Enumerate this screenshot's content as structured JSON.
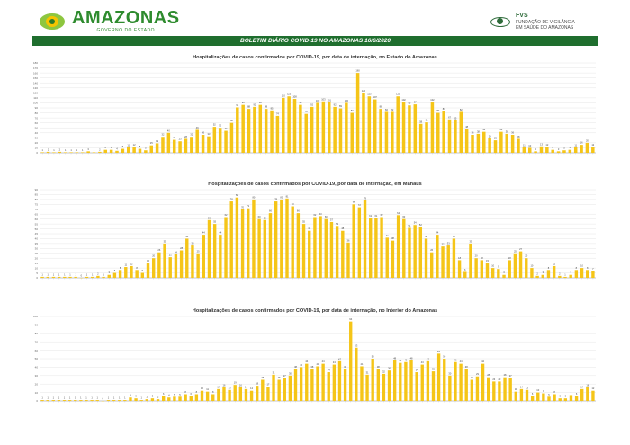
{
  "header": {
    "brand_name": "AMAZONAS",
    "brand_subtitle": "GOVERNO DO ESTADO",
    "fvs_name": "FVS",
    "fvs_line1": "FUNDAÇÃO DE VIGILÂNCIA",
    "fvs_line2": "EM SAÚDE DO AMAZONAS"
  },
  "bulletin_title": "BOLETIM DIÁRIO COVID-19 NO AMAZONAS 16/6/2020",
  "chart_data": [
    {
      "type": "bar",
      "title": "Hospitalizações de casos confirmados por COVID-19, por data de internação, no Estado do Amazonas",
      "ylim": [
        0,
        180
      ],
      "yticks": [
        0,
        10,
        20,
        30,
        40,
        50,
        60,
        70,
        80,
        90,
        100,
        110,
        120,
        130,
        140,
        150,
        160,
        170,
        180
      ],
      "color": "#f5c518",
      "values": [
        1,
        2,
        1,
        2,
        1,
        1,
        1,
        1,
        3,
        1,
        2,
        6,
        6,
        4,
        8,
        11,
        12,
        8,
        5,
        15,
        19,
        32,
        40,
        26,
        23,
        28,
        32,
        46,
        36,
        33,
        52,
        50,
        44,
        60,
        91,
        96,
        88,
        92,
        96,
        88,
        85,
        74,
        110,
        113,
        108,
        96,
        78,
        92,
        100,
        103,
        101,
        92,
        89,
        100,
        80,
        160,
        120,
        113,
        107,
        88,
        82,
        82,
        113,
        102,
        95,
        97,
        58,
        61,
        102,
        80,
        84,
        67,
        65,
        82,
        48,
        36,
        38,
        42,
        29,
        25,
        42,
        38,
        36,
        28,
        11,
        10,
        3,
        13,
        12,
        6,
        3,
        5,
        6,
        11,
        16,
        20,
        12
      ]
    },
    {
      "type": "bar",
      "title": "Hospitalizações de casos confirmados por COVID-19, por data de internação, em Manaus",
      "ylim": [
        0,
        90
      ],
      "yticks": [
        0,
        5,
        10,
        15,
        20,
        25,
        30,
        35,
        40,
        45,
        50,
        55,
        60,
        65,
        70,
        75,
        80,
        85,
        90
      ],
      "color": "#f5c518",
      "values": [
        1,
        1,
        1,
        1,
        1,
        1,
        1,
        0,
        1,
        1,
        2,
        1,
        3,
        5,
        8,
        11,
        12,
        8,
        5,
        15,
        20,
        26,
        35,
        21,
        24,
        28,
        40,
        33,
        25,
        44,
        59,
        55,
        44,
        62,
        78,
        82,
        70,
        71,
        80,
        60,
        59,
        66,
        78,
        80,
        81,
        73,
        66,
        55,
        48,
        62,
        63,
        60,
        57,
        53,
        48,
        36,
        75,
        72,
        79,
        61,
        61,
        62,
        41,
        38,
        64,
        60,
        51,
        54,
        52,
        40,
        26,
        44,
        32,
        33,
        40,
        18,
        6,
        35,
        20,
        18,
        15,
        10,
        9,
        3,
        18,
        25,
        27,
        20,
        10,
        2,
        3,
        8,
        12,
        2,
        1,
        3,
        8,
        10,
        8,
        7
      ]
    },
    {
      "type": "bar",
      "title": "Hospitalizações  de casos confirmados por COVID-19, por data de internação, no Interior do Amazonas",
      "ylim": [
        0,
        100
      ],
      "yticks": [
        0,
        10,
        20,
        30,
        40,
        50,
        60,
        70,
        80,
        90,
        100
      ],
      "color": "#f5c518",
      "values": [
        1,
        1,
        1,
        1,
        1,
        1,
        1,
        1,
        1,
        1,
        1,
        0,
        1,
        1,
        1,
        1,
        4,
        3,
        1,
        2,
        3,
        2,
        6,
        4,
        5,
        5,
        8,
        6,
        8,
        12,
        11,
        8,
        14,
        16,
        13,
        19,
        16,
        14,
        12,
        18,
        25,
        17,
        31,
        25,
        27,
        30,
        38,
        40,
        44,
        38,
        41,
        44,
        34,
        43,
        47,
        38,
        94,
        63,
        41,
        31,
        50,
        38,
        32,
        36,
        48,
        45,
        46,
        48,
        34,
        43,
        47,
        35,
        56,
        50,
        30,
        46,
        44,
        38,
        25,
        29,
        44,
        28,
        23,
        23,
        28,
        27,
        11,
        14,
        13,
        6,
        10,
        9,
        5,
        8,
        3,
        3,
        7,
        6,
        14,
        16,
        12
      ]
    }
  ]
}
